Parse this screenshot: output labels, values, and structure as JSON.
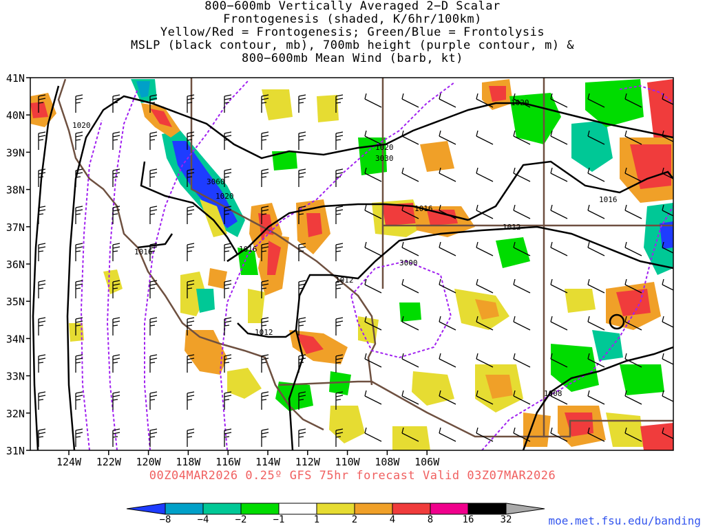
{
  "title_lines": [
    "800−600mb Vertically Averaged 2−D Scalar",
    "Frontogenesis (shaded, K/6hr/100km)",
    "Yellow/Red = Frontogenesis;  Green/Blue = Frontolysis",
    "MSLP (black contour, mb), 700mb height (purple contour, m) &",
    "800−600mb Mean Wind (barb, kt)"
  ],
  "lat_labels": [
    "41N",
    "40N",
    "39N",
    "38N",
    "37N",
    "36N",
    "35N",
    "34N",
    "33N",
    "32N",
    "31N"
  ],
  "lon_labels": [
    "124W",
    "122W",
    "120W",
    "118W",
    "116W",
    "114W",
    "112W",
    "110W",
    "108W",
    "106W"
  ],
  "contour_labels": {
    "mslp": [
      "1020",
      "1020",
      "1020",
      "1020",
      "1016",
      "1016",
      "1016",
      "1016",
      "1012",
      "1012",
      "1012",
      "1008"
    ],
    "height": [
      "3060",
      "3030",
      "3000"
    ]
  },
  "valid_text": "00Z04MAR2026  0.25º  GFS  75hr  forecast  Valid  03Z07MAR2026",
  "colorbar": {
    "labels": [
      "−8",
      "−4",
      "−2",
      "−1",
      "1",
      "2",
      "4",
      "8",
      "16",
      "32"
    ],
    "colors": [
      "#1e3cff",
      "#00a0c8",
      "#00c896",
      "#00dc00",
      "#ffffff",
      "#e6dc32",
      "#f0a028",
      "#f03c3c",
      "#f0008c",
      "#000000",
      "#aaaaaa"
    ]
  },
  "credit": "moe.met.fsu.edu/banding",
  "colors": {
    "mslp": "#000000",
    "height": "#a020f0",
    "borders": "#6e5040",
    "valid": "#f06060",
    "credit": "#3355ee"
  }
}
